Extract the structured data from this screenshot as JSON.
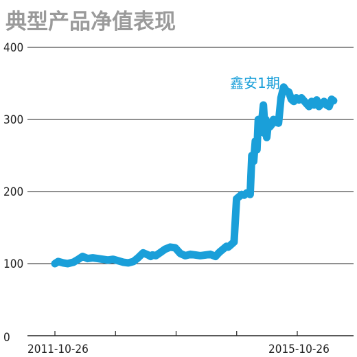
{
  "chart_data": {
    "type": "line",
    "title": "典型产品净值表现",
    "ylim": [
      0,
      400
    ],
    "y_ticks": [
      0,
      100,
      200,
      300,
      400
    ],
    "grid": true,
    "x_tick_labels": [
      "2011-10-26",
      "2015-10-26"
    ],
    "line_color": "#1a9fd9",
    "series": [
      {
        "name": "鑫安1期",
        "x": [
          "2011-10-26",
          "2011-11-15",
          "2011-12-15",
          "2012-01-10",
          "2012-02-15",
          "2012-03-15",
          "2012-04-10",
          "2012-05-10",
          "2012-06-10",
          "2012-07-10",
          "2012-08-10",
          "2012-09-10",
          "2012-10-10",
          "2012-11-10",
          "2012-12-10",
          "2013-01-10",
          "2013-02-10",
          "2013-03-10",
          "2013-04-10",
          "2013-05-10",
          "2013-05-25",
          "2013-06-05",
          "2013-06-25",
          "2013-07-20",
          "2013-08-20",
          "2013-09-20",
          "2013-10-20",
          "2013-11-20",
          "2013-12-20",
          "2014-01-20",
          "2014-02-20",
          "2014-03-20",
          "2014-04-20",
          "2014-05-20",
          "2014-06-20",
          "2014-07-10",
          "2014-07-20",
          "2014-08-10",
          "2014-08-25",
          "2014-09-05",
          "2014-09-15",
          "2014-10-10",
          "2014-10-25",
          "2014-11-10",
          "2014-11-25",
          "2014-12-10",
          "2014-12-25",
          "2015-01-05",
          "2015-01-15",
          "2015-01-25",
          "2015-02-05",
          "2015-02-15",
          "2015-02-25",
          "2015-03-05",
          "2015-03-15",
          "2015-03-25",
          "2015-04-05",
          "2015-04-15",
          "2015-04-20",
          "2015-04-25",
          "2015-05-05",
          "2015-05-15",
          "2015-05-25",
          "2015-06-05",
          "2015-06-20",
          "2015-07-05",
          "2015-07-20",
          "2015-08-05",
          "2015-08-20",
          "2015-09-05",
          "2015-09-20",
          "2015-10-05",
          "2015-10-20",
          "2015-11-05",
          "2015-11-20",
          "2015-12-05",
          "2015-12-20",
          "2016-01-05",
          "2016-01-20",
          "2016-02-05",
          "2016-02-20",
          "2016-03-05",
          "2016-03-20",
          "2016-04-05",
          "2016-04-20",
          "2016-05-05",
          "2016-05-20",
          "2016-06-01"
        ],
        "values": [
          100,
          103,
          101,
          100,
          102,
          106,
          110,
          107,
          108,
          107,
          106,
          105,
          106,
          104,
          102,
          101,
          103,
          108,
          115,
          112,
          110,
          112,
          111,
          115,
          120,
          123,
          122,
          114,
          111,
          113,
          112,
          111,
          112,
          113,
          110,
          115,
          117,
          121,
          124,
          123,
          125,
          130,
          190,
          193,
          196,
          195,
          198,
          197,
          196,
          250,
          242,
          270,
          258,
          300,
          282,
          296,
          320,
          280,
          300,
          275,
          296,
          290,
          293,
          300,
          296,
          295,
          330,
          345,
          340,
          338,
          328,
          325,
          330,
          327,
          330,
          326,
          322,
          318,
          325,
          320,
          327,
          318,
          322,
          325,
          320,
          318,
          328,
          326
        ]
      }
    ]
  }
}
